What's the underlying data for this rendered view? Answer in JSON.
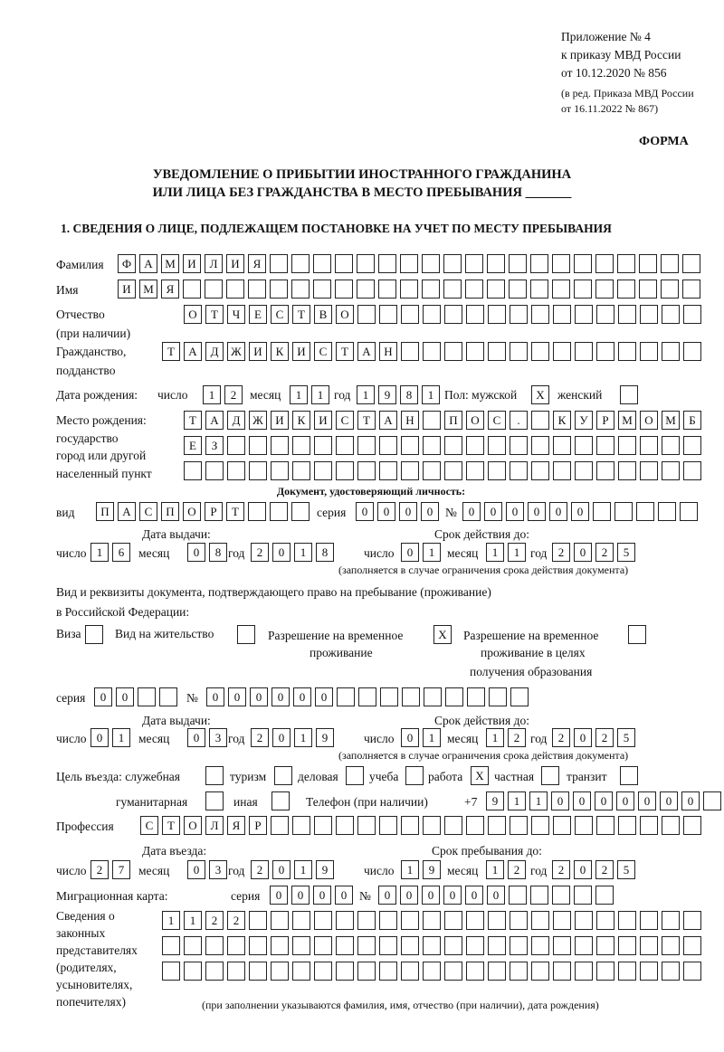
{
  "header": {
    "l1": "Приложение № 4",
    "l2": "к приказу МВД России",
    "l3": "от 10.12.2020 № 856",
    "l4": "(в ред. Приказа МВД России",
    "l5": "от 16.11.2022 № 867)",
    "forma": "ФОРМА"
  },
  "title": {
    "l1": "УВЕДОМЛЕНИЕ О ПРИБЫТИИ ИНОСТРАННОГО ГРАЖДАНИНА",
    "l2": "ИЛИ ЛИЦА БЕЗ ГРАЖДАНСТВА В МЕСТО ПРЕБЫВАНИЯ _______"
  },
  "section1": "1. СВЕДЕНИЯ О ЛИЦЕ, ПОДЛЕЖАЩЕМ ПОСТАНОВКЕ НА УЧЕТ ПО МЕСТУ ПРЕБЫВАНИЯ",
  "labels": {
    "surname": "Фамилия",
    "name": "Имя",
    "patronymic": "Отчество",
    "patronymic2": "(при наличии)",
    "citizenship": "Гражданство,",
    "citizenship2": "подданство",
    "birth_date": "Дата рождения:",
    "day": "число",
    "month": "месяц",
    "year": "год",
    "sex": "Пол: мужской",
    "female": "женский",
    "birthplace1": "Место рождения:",
    "birthplace2": "государство",
    "birthplace3": "город или другой",
    "birthplace4": "населенный пункт",
    "id_doc": "Документ, удостоверяющий личность:",
    "kind": "вид",
    "series": "серия",
    "number": "№",
    "issue_date": "Дата выдачи:",
    "valid_until": "Срок действия до:",
    "valid_note": "(заполняется в случае ограничения срока действия документа)",
    "right_doc1": "Вид и реквизиты документа, подтверждающего право на пребывание (проживание)",
    "right_doc2": "в Российской Федерации:",
    "visa": "Виза",
    "residence": "Вид на жительство",
    "temp1": "Разрешение на временное",
    "temp2": "проживание",
    "edu1": "Разрешение на временное",
    "edu2": "проживание в целях",
    "edu3": "получения образования",
    "purpose": "Цель въезда: служебная",
    "tourism": "туризм",
    "business": "деловая",
    "study": "учеба",
    "work": "работа",
    "private": "частная",
    "transit": "транзит",
    "humanitarian": "гуманитарная",
    "other": "иная",
    "phone": "Телефон (при наличии)",
    "phone_prefix": "+7",
    "profession": "Профессия",
    "entry_date": "Дата въезда:",
    "stay_until": "Срок пребывания до:",
    "migration_card": "Миграционная карта:",
    "reps1": "Сведения о",
    "reps2": "законных",
    "reps3": "представителях",
    "reps4": "(родителях,",
    "reps5": "усыновителях,",
    "reps6": "попечителях)",
    "reps_note": "(при заполнении указываются фамилия, имя, отчество (при наличии), дата рождения)"
  },
  "values": {
    "surname": "ФАМИЛИЯ",
    "name": "ИМЯ",
    "patronymic": "ОТЧЕСТВО",
    "citizenship": "ТАДЖИКИСТАН",
    "birth_day": "12",
    "birth_month": "11",
    "birth_year": "1981",
    "male": "X",
    "female": "",
    "birthplace1": "ТАДЖИКИСТАН ПОС. КУРМОМБ",
    "birthplace2": "ЕЗ",
    "birthplace3": "",
    "doc_kind": "ПАСПОРТ",
    "doc_series": "0000",
    "doc_number": "000000",
    "doc_issue_day": "16",
    "doc_issue_month": "08",
    "doc_issue_year": "2018",
    "doc_valid_day": "01",
    "doc_valid_month": "11",
    "doc_valid_year": "2025",
    "visa": "",
    "residence": "",
    "temp_residence": "X",
    "edu_residence": "",
    "right_series": "00",
    "right_number": "000000",
    "right_issue_day": "01",
    "right_issue_month": "03",
    "right_issue_year": "2019",
    "right_valid_day": "01",
    "right_valid_month": "12",
    "right_valid_year": "2025",
    "p_service": "",
    "p_tourism": "",
    "p_business": "",
    "p_study": "",
    "p_work": "X",
    "p_private": "",
    "p_transit": "",
    "p_humanitarian": "",
    "p_other": "",
    "phone": "9110000000",
    "profession": "СТОЛЯР",
    "entry_day": "27",
    "entry_month": "03",
    "entry_year": "2019",
    "stay_day": "19",
    "stay_month": "12",
    "stay_year": "2025",
    "mc_series": "0000",
    "mc_number": "000000",
    "reps1": "1122",
    "reps2": "",
    "reps3": ""
  }
}
